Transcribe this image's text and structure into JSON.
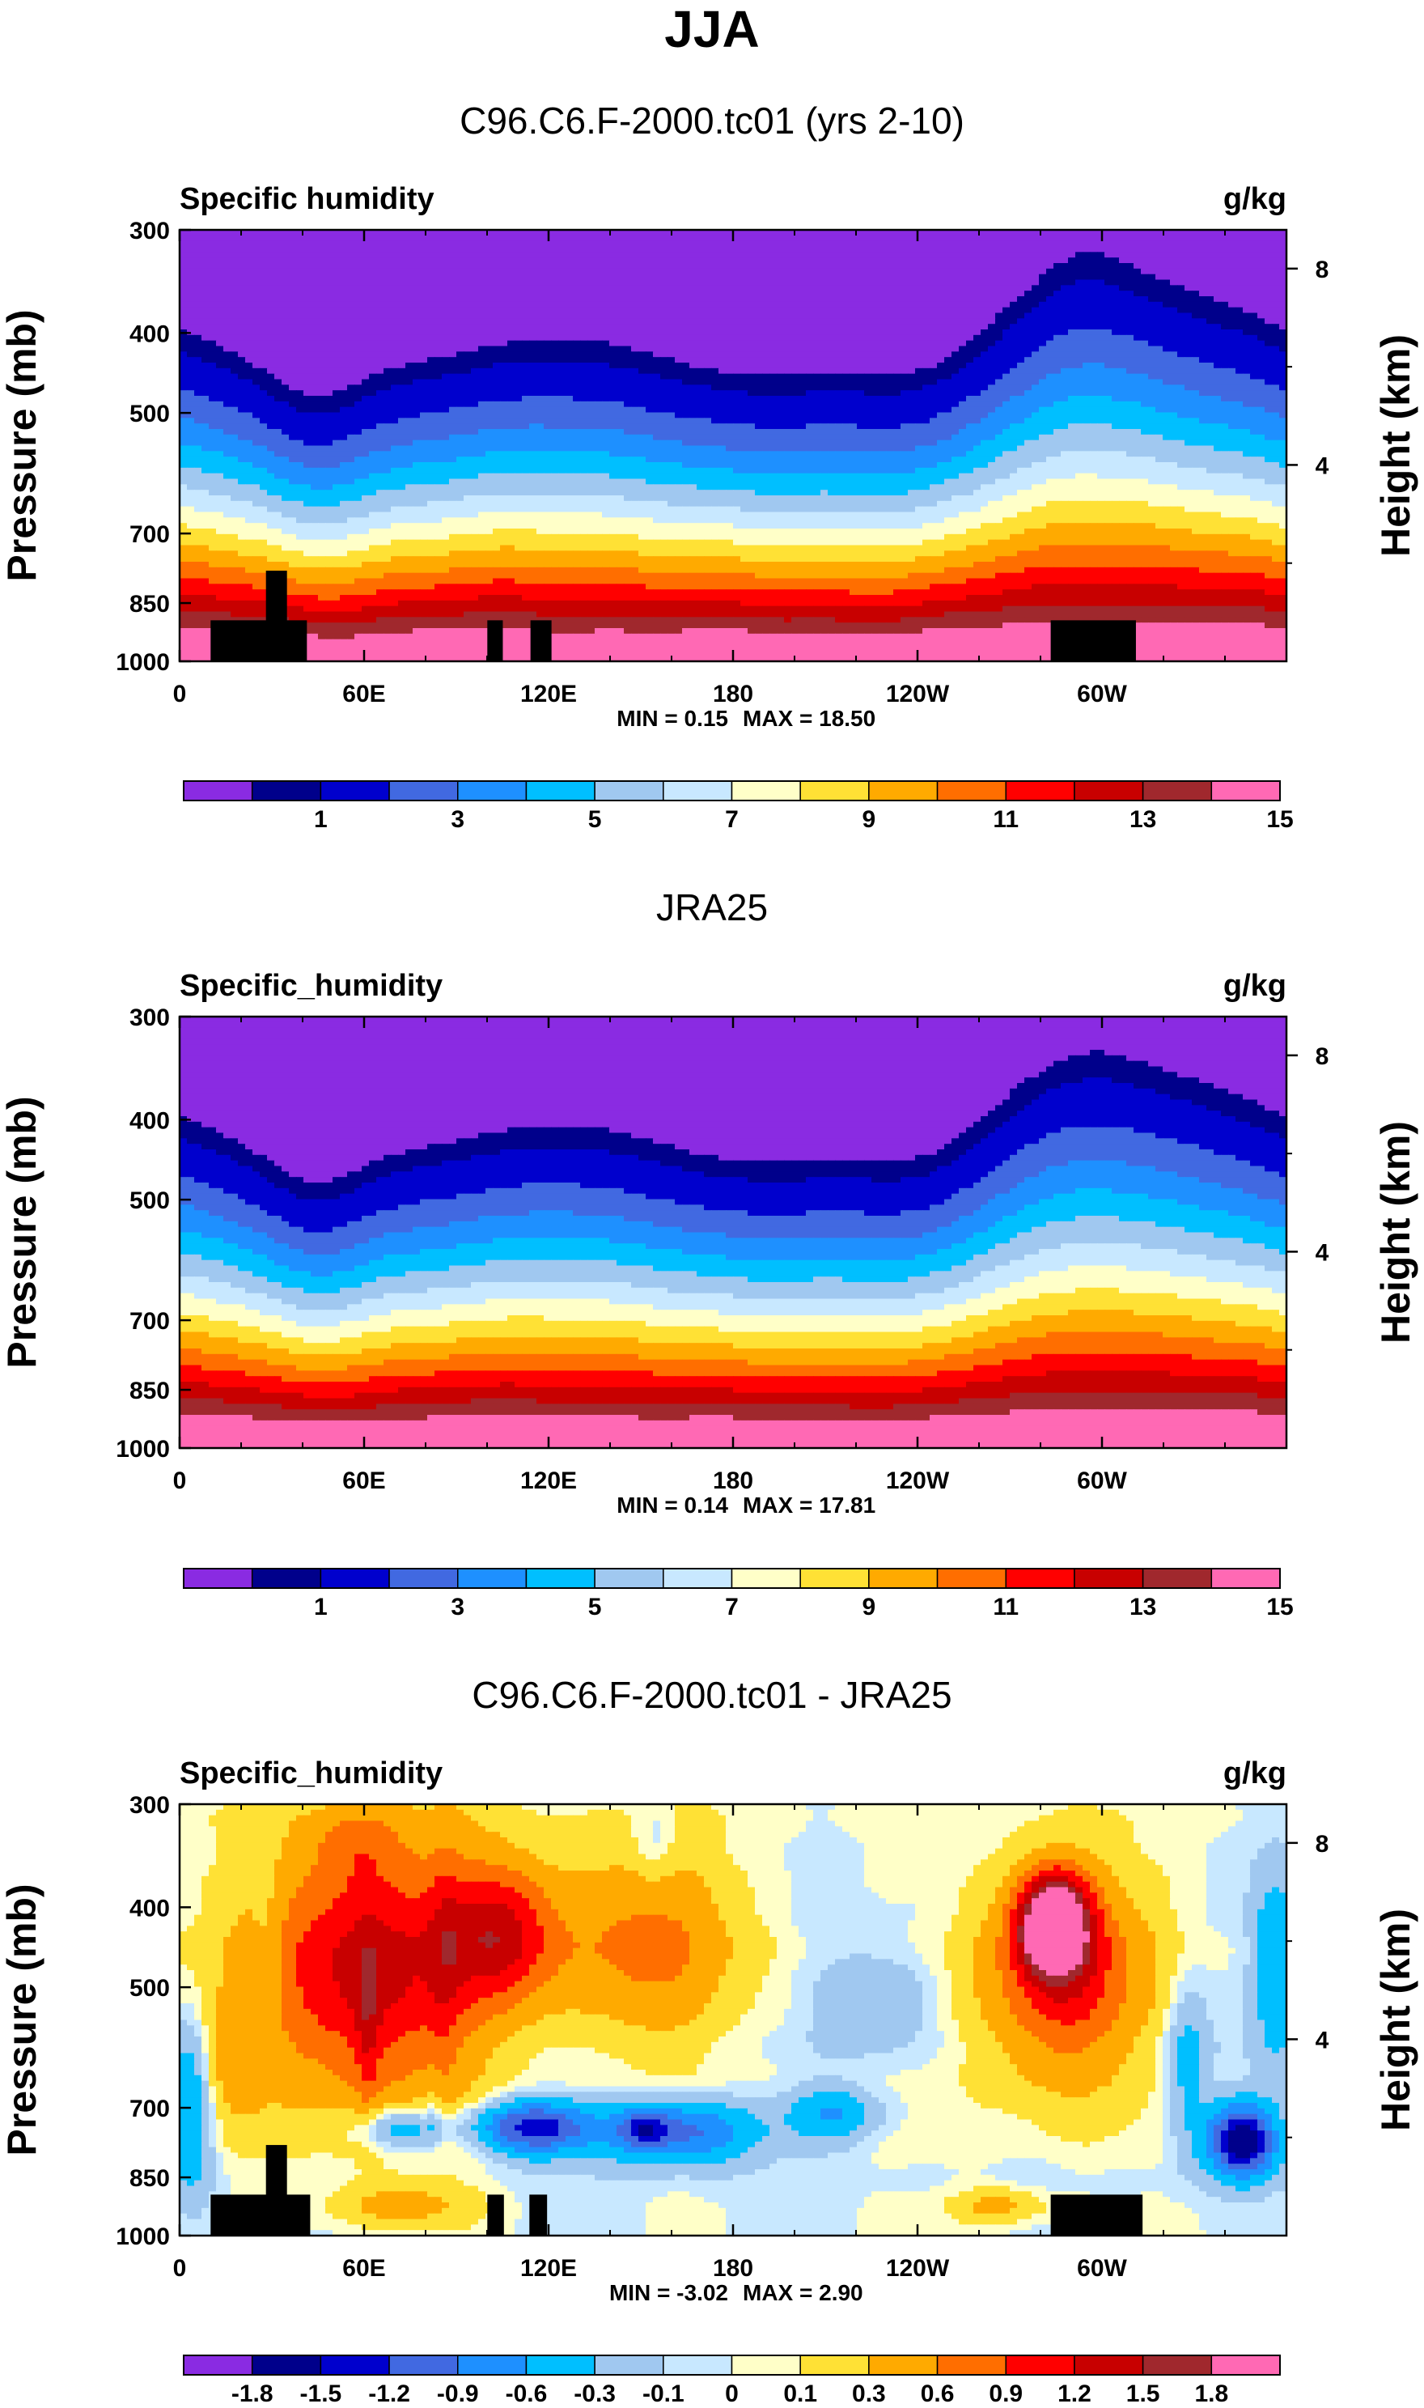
{
  "title": "JJA",
  "chart_data": [
    {
      "type": "heatmap",
      "title": "C96.C6.F-2000.tc01 (yrs 2-10)",
      "variable": "Specific humidity",
      "units": "g/kg",
      "ylabel": "Pressure (mb)",
      "ylabel_right": "Height (km)",
      "x_ticks": [
        "0",
        "60E",
        "120E",
        "180",
        "120W",
        "60W"
      ],
      "y_ticks": [
        "300",
        "400",
        "500",
        "700",
        "850",
        "1000"
      ],
      "right_ticks": [
        "8",
        "4"
      ],
      "levels": [
        0.5,
        1,
        2,
        3,
        4,
        5,
        6,
        7,
        8,
        9,
        10,
        11,
        12,
        13,
        14,
        15
      ],
      "colorbar_labels": [
        "1",
        "3",
        "5",
        "7",
        "9",
        "11",
        "13",
        "15"
      ],
      "min_label": "MIN =   0.15",
      "max_label": "MAX =  18.50",
      "min": 0.15,
      "max": 18.5
    },
    {
      "type": "heatmap",
      "title": "JRA25",
      "variable": "Specific_humidity",
      "units": "g/kg",
      "ylabel": "Pressure (mb)",
      "ylabel_right": "Height (km)",
      "x_ticks": [
        "0",
        "60E",
        "120E",
        "180",
        "120W",
        "60W"
      ],
      "y_ticks": [
        "300",
        "400",
        "500",
        "700",
        "850",
        "1000"
      ],
      "right_ticks": [
        "8",
        "4"
      ],
      "levels": [
        0.5,
        1,
        2,
        3,
        4,
        5,
        6,
        7,
        8,
        9,
        10,
        11,
        12,
        13,
        14,
        15
      ],
      "colorbar_labels": [
        "1",
        "3",
        "5",
        "7",
        "9",
        "11",
        "13",
        "15"
      ],
      "min_label": "MIN =   0.14",
      "max_label": "MAX =  17.81",
      "min": 0.14,
      "max": 17.81
    },
    {
      "type": "heatmap",
      "title": "C96.C6.F-2000.tc01 - JRA25",
      "variable": "Specific_humidity",
      "units": "g/kg",
      "ylabel": "Pressure (mb)",
      "ylabel_right": "Height (km)",
      "x_ticks": [
        "0",
        "60E",
        "120E",
        "180",
        "120W",
        "60W"
      ],
      "y_ticks": [
        "300",
        "400",
        "500",
        "700",
        "850",
        "1000"
      ],
      "right_ticks": [
        "8",
        "4"
      ],
      "levels": [
        -1.8,
        -1.5,
        -1.2,
        -0.9,
        -0.6,
        -0.3,
        -0.1,
        0,
        0.1,
        0.3,
        0.6,
        0.9,
        1.2,
        1.5,
        1.8
      ],
      "colorbar_labels": [
        "-1.8",
        "-1.5",
        "-1.2",
        "-0.9",
        "-0.6",
        "-0.3",
        "-0.1",
        "0",
        "0.1",
        "0.3",
        "0.6",
        "0.9",
        "1.2",
        "1.5",
        "1.8"
      ],
      "min_label": "MIN =  -3.02",
      "max_label": "MAX =   2.90",
      "min": -3.02,
      "max": 2.9
    }
  ],
  "colors": {
    "colorbar": [
      "#8a2be2",
      "#00008b",
      "#0000cd",
      "#4169e1",
      "#1e90ff",
      "#00bfff",
      "#a0c8f0",
      "#c8e8ff",
      "#ffffc8",
      "#ffe135",
      "#ffaa00",
      "#ff6e00",
      "#ff0000",
      "#c80000",
      "#a0282d",
      "#ff69b4"
    ],
    "topography": "#000000"
  }
}
